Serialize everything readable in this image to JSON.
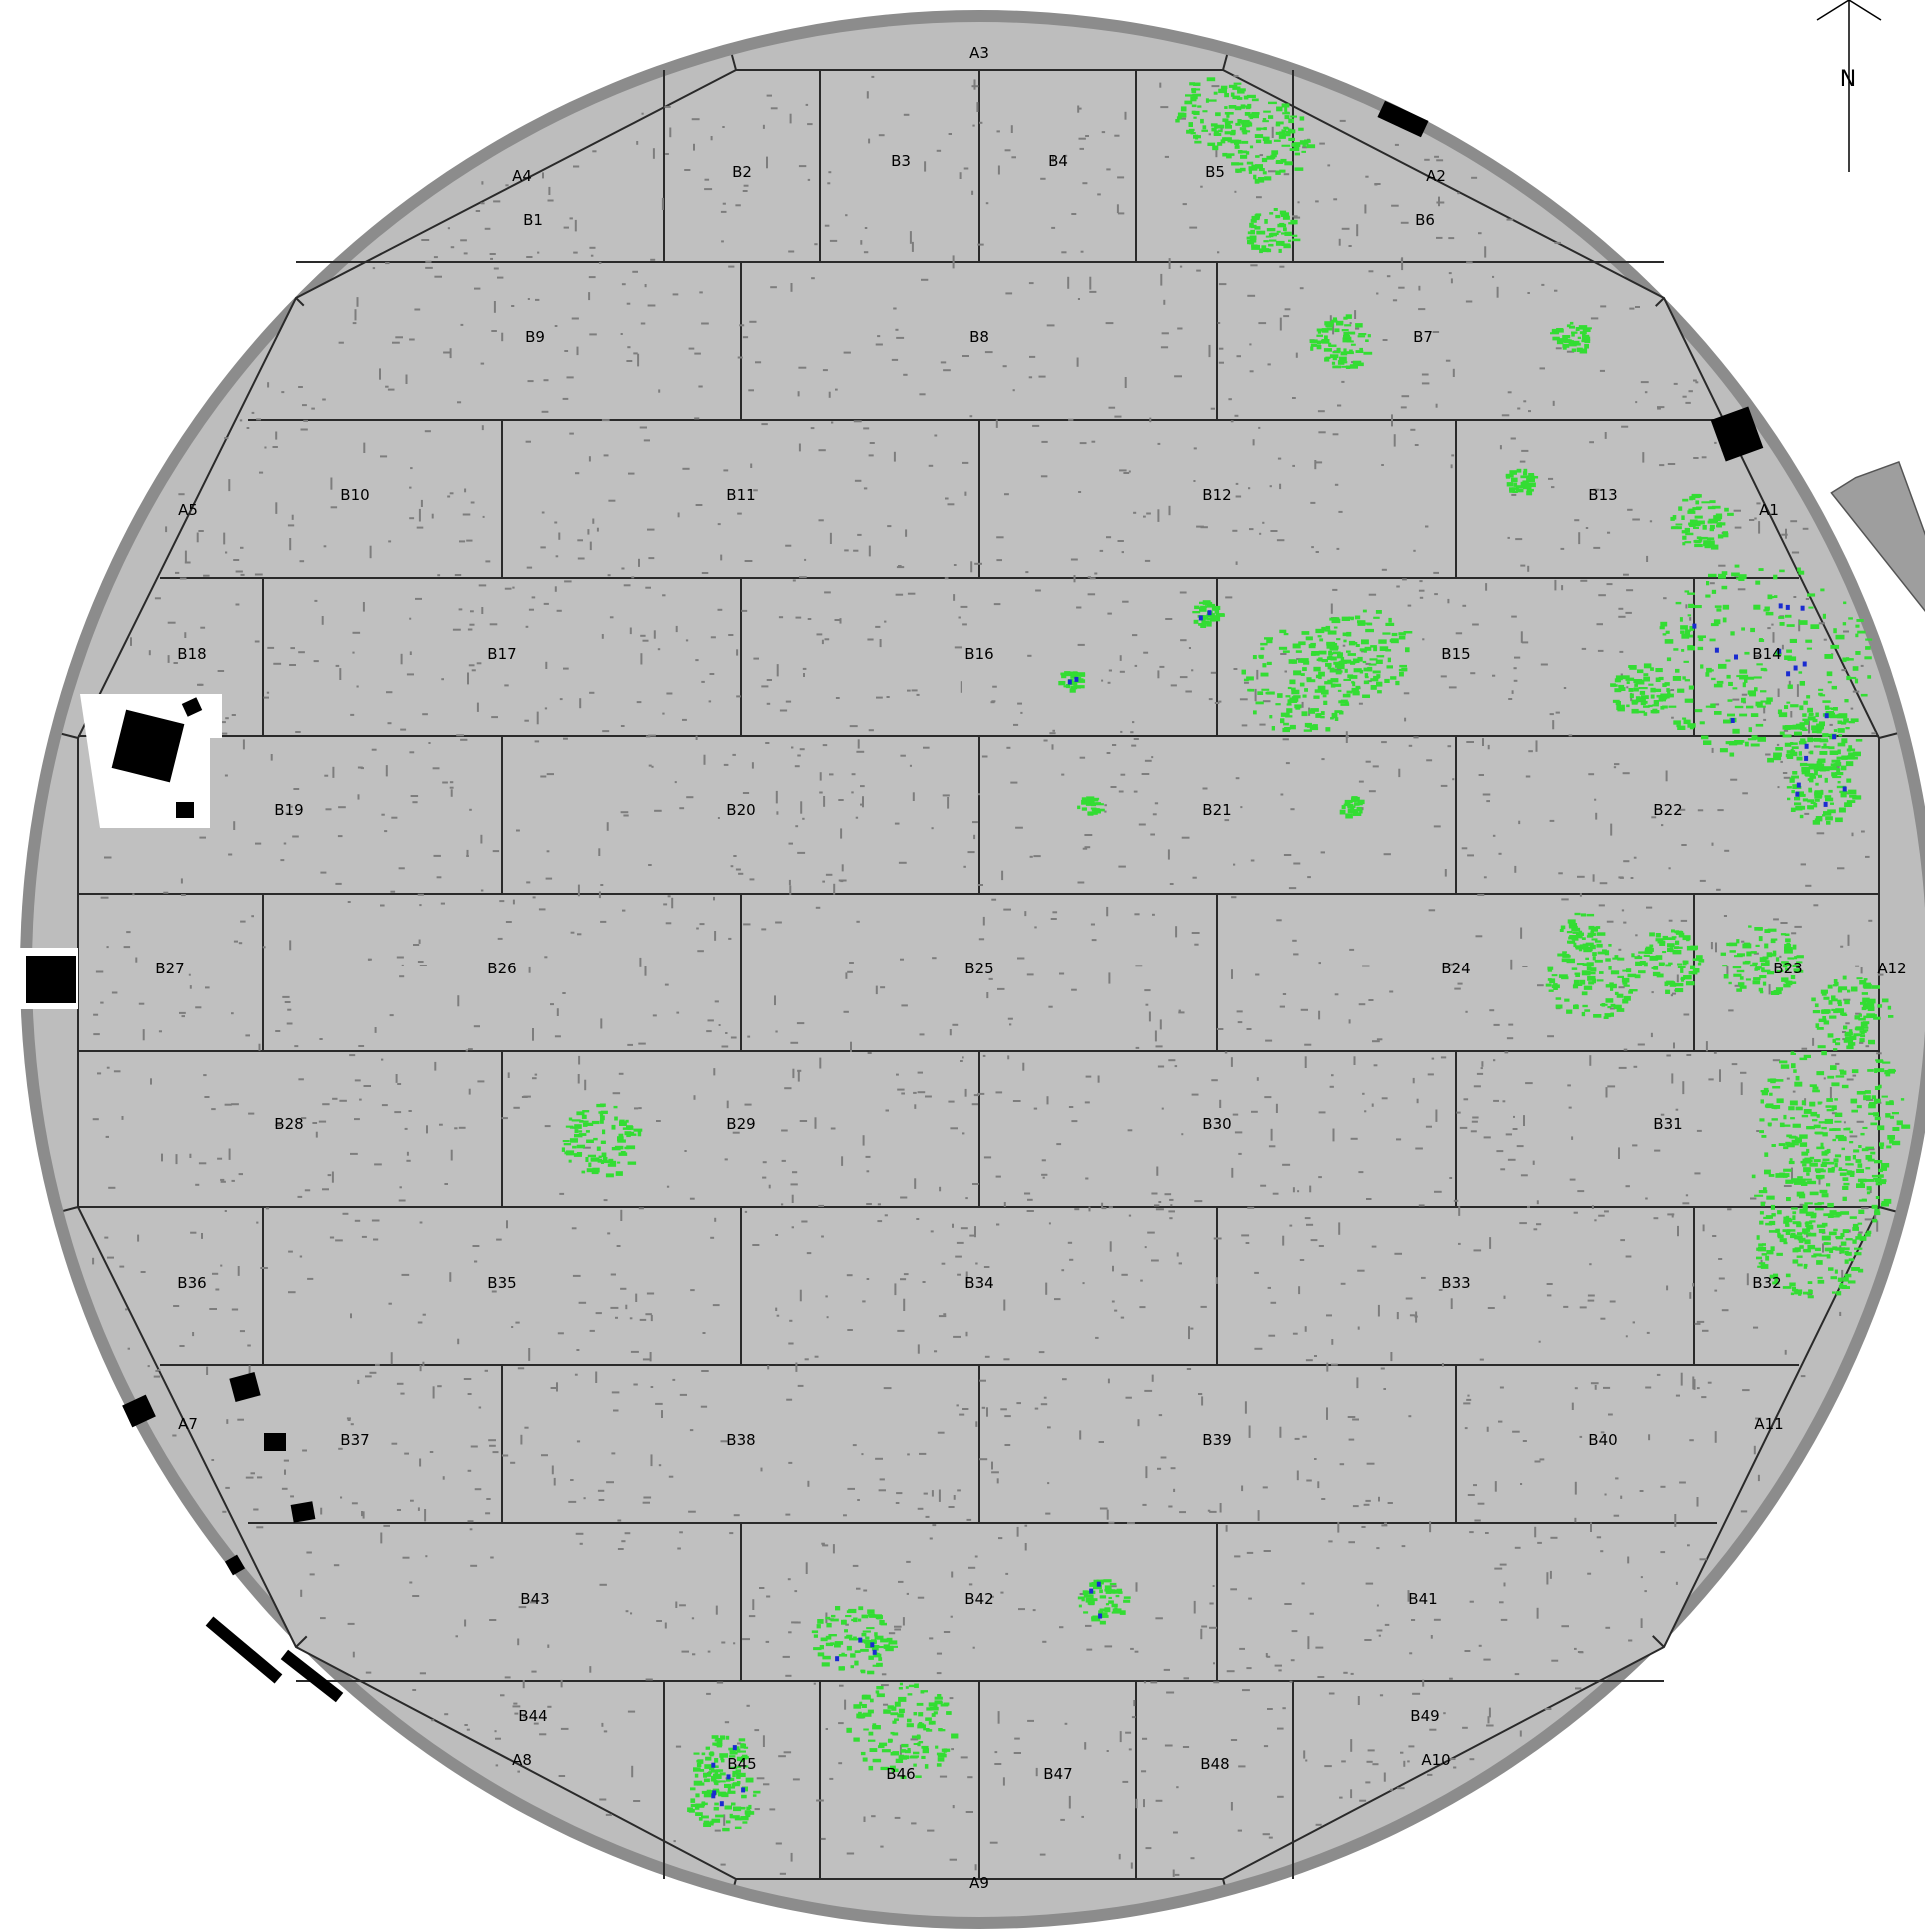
{
  "colors": {
    "background": "#ffffff",
    "rim": "#8c8c8c",
    "floor": "#c0c0c0",
    "annular": "#bdbdbd",
    "seam": "#2a2a2a",
    "pitting": "#7d7d7d",
    "corrosion_medium": "#33dd33",
    "corrosion_high": "#1a2bd0",
    "obstruction": "#000000",
    "unscanned": "#ffffff",
    "nozzle": "#9e9e9e"
  },
  "legend_colors_order": [
    "pitting",
    "corrosion_medium",
    "corrosion_high"
  ],
  "compass": {
    "label": "N",
    "icon": "north-arrow-icon"
  },
  "annular_plates": [
    {
      "id": "A1",
      "label": "A1"
    },
    {
      "id": "A2",
      "label": "A2"
    },
    {
      "id": "A3",
      "label": "A3"
    },
    {
      "id": "A4",
      "label": "A4"
    },
    {
      "id": "A5",
      "label": "A5"
    },
    {
      "id": "A7",
      "label": "A7"
    },
    {
      "id": "A8",
      "label": "A8"
    },
    {
      "id": "A9",
      "label": "A9"
    },
    {
      "id": "A10",
      "label": "A10"
    },
    {
      "id": "A11",
      "label": "A11"
    },
    {
      "id": "A12",
      "label": "A12"
    }
  ],
  "floor_plates": [
    {
      "id": "B1",
      "label": "B1"
    },
    {
      "id": "B2",
      "label": "B2"
    },
    {
      "id": "B3",
      "label": "B3"
    },
    {
      "id": "B4",
      "label": "B4"
    },
    {
      "id": "B5",
      "label": "B5"
    },
    {
      "id": "B6",
      "label": "B6"
    },
    {
      "id": "B7",
      "label": "B7"
    },
    {
      "id": "B8",
      "label": "B8"
    },
    {
      "id": "B9",
      "label": "B9"
    },
    {
      "id": "B10",
      "label": "B10"
    },
    {
      "id": "B11",
      "label": "B11"
    },
    {
      "id": "B12",
      "label": "B12"
    },
    {
      "id": "B13",
      "label": "B13"
    },
    {
      "id": "B14",
      "label": "B14"
    },
    {
      "id": "B15",
      "label": "B15"
    },
    {
      "id": "B16",
      "label": "B16"
    },
    {
      "id": "B17",
      "label": "B17"
    },
    {
      "id": "B18",
      "label": "B18"
    },
    {
      "id": "B19",
      "label": "B19"
    },
    {
      "id": "B20",
      "label": "B20"
    },
    {
      "id": "B21",
      "label": "B21"
    },
    {
      "id": "B22",
      "label": "B22"
    },
    {
      "id": "B23",
      "label": "B23"
    },
    {
      "id": "B24",
      "label": "B24"
    },
    {
      "id": "B25",
      "label": "B25"
    },
    {
      "id": "B26",
      "label": "B26"
    },
    {
      "id": "B27",
      "label": "B27"
    },
    {
      "id": "B28",
      "label": "B28"
    },
    {
      "id": "B29",
      "label": "B29"
    },
    {
      "id": "B30",
      "label": "B30"
    },
    {
      "id": "B31",
      "label": "B31"
    },
    {
      "id": "B32",
      "label": "B32"
    },
    {
      "id": "B33",
      "label": "B33"
    },
    {
      "id": "B34",
      "label": "B34"
    },
    {
      "id": "B35",
      "label": "B35"
    },
    {
      "id": "B36",
      "label": "B36"
    },
    {
      "id": "B37",
      "label": "B37"
    },
    {
      "id": "B38",
      "label": "B38"
    },
    {
      "id": "B39",
      "label": "B39"
    },
    {
      "id": "B40",
      "label": "B40"
    },
    {
      "id": "B41",
      "label": "B41"
    },
    {
      "id": "B42",
      "label": "B42"
    },
    {
      "id": "B43",
      "label": "B43"
    },
    {
      "id": "B44",
      "label": "B44"
    },
    {
      "id": "B45",
      "label": "B45"
    },
    {
      "id": "B46",
      "label": "B46"
    },
    {
      "id": "B47",
      "label": "B47"
    },
    {
      "id": "B48",
      "label": "B48"
    },
    {
      "id": "B49",
      "label": "B49"
    }
  ],
  "corrosion_hotspots": [
    {
      "plate": "B5",
      "severity": "medium"
    },
    {
      "plate": "B7",
      "severity": "medium"
    },
    {
      "plate": "B13",
      "severity": "medium"
    },
    {
      "plate": "B14",
      "severity": "high"
    },
    {
      "plate": "B15",
      "severity": "medium"
    },
    {
      "plate": "B16",
      "severity": "high"
    },
    {
      "plate": "B21",
      "severity": "medium"
    },
    {
      "plate": "B22",
      "severity": "high"
    },
    {
      "plate": "B23",
      "severity": "medium"
    },
    {
      "plate": "B24",
      "severity": "medium"
    },
    {
      "plate": "B29",
      "severity": "medium"
    },
    {
      "plate": "B31",
      "severity": "medium"
    },
    {
      "plate": "B32",
      "severity": "medium"
    },
    {
      "plate": "B42",
      "severity": "high"
    },
    {
      "plate": "B45",
      "severity": "high"
    },
    {
      "plate": "B46",
      "severity": "medium"
    }
  ]
}
